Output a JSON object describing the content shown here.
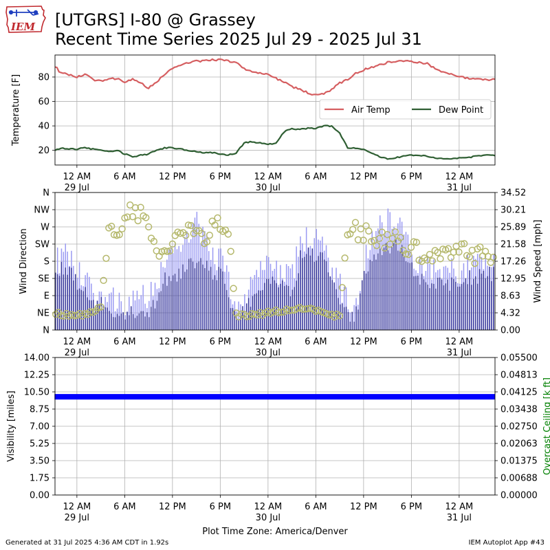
{
  "header": {
    "logo_text": "IEM",
    "title_line1": "[UTGRS] I-80 @ Grassey",
    "title_line2": "Recent Time Series 2025 Jul 29 - 2025 Jul 31"
  },
  "footer": {
    "generated": "Generated at 31 Jul 2025 4:36 AM CDT in 1.92s",
    "app": "IEM Autoplot App #43"
  },
  "colors": {
    "air_temp": "#d55e60",
    "dew_point": "#2e5e32",
    "gust_bar": "#9a9af2",
    "speed_bar": "#373799",
    "direction_marker": "#b5b86c",
    "visibility": "#0000ff",
    "ceiling_axis": "#008000"
  },
  "time_axis": {
    "start_hours": -2.75,
    "end_hours": 52.5,
    "tick_hours": [
      0,
      6,
      12,
      18,
      24,
      30,
      36,
      42,
      48
    ],
    "tick_labels": [
      "12 AM",
      "6 AM",
      "12 PM",
      "6 PM",
      "12 AM",
      "6 AM",
      "12 PM",
      "6 PM",
      "12 AM"
    ],
    "date_labels": [
      {
        "hour": 0,
        "label": "29 Jul"
      },
      {
        "hour": 24,
        "label": "30 Jul"
      },
      {
        "hour": 48,
        "label": "31 Jul"
      }
    ],
    "xlabel": "Plot Time Zone: America/Denver"
  },
  "chart_data": [
    {
      "type": "line",
      "name": "temperature",
      "ylabel": "Temperature [F]",
      "ylim": [
        8,
        98
      ],
      "yticks": [
        20,
        40,
        60,
        80
      ],
      "grid": true,
      "legend": "right",
      "legend_labels": [
        "Air Temp",
        "Dew Point"
      ],
      "x_hours": [
        -2.75,
        -2,
        -1,
        0,
        1,
        2,
        3,
        4,
        5,
        6,
        7,
        8,
        9,
        10,
        11,
        12,
        13,
        14,
        15,
        16,
        17,
        18,
        19,
        20,
        21,
        22,
        23,
        24,
        25,
        26,
        27,
        28,
        29,
        30,
        31,
        32,
        33,
        34,
        35,
        36,
        37,
        38,
        39,
        40,
        41,
        42,
        43,
        44,
        45,
        46,
        47,
        48,
        49,
        50,
        51,
        52,
        52.5
      ],
      "series": [
        {
          "name": "Air Temp",
          "values": [
            89,
            83,
            82,
            80,
            82,
            78,
            77,
            78,
            79,
            76,
            78,
            75,
            71,
            76,
            82,
            87,
            90,
            92,
            93,
            93,
            94,
            94,
            93,
            92,
            87,
            84,
            83,
            82,
            79,
            76,
            72,
            70,
            67,
            65,
            66,
            70,
            75,
            78,
            83,
            86,
            88,
            90,
            92,
            93,
            93,
            93,
            92,
            91,
            87,
            84,
            82,
            81,
            79,
            78,
            78,
            78,
            78
          ]
        },
        {
          "name": "Dew Point",
          "values": [
            20,
            22,
            21,
            21,
            22,
            21,
            20,
            19,
            20,
            17,
            15,
            16,
            17,
            20,
            22,
            22,
            21,
            20,
            19,
            18,
            18,
            17,
            16,
            18,
            26,
            27,
            26,
            25,
            26,
            35,
            38,
            37,
            38,
            38,
            40,
            40,
            34,
            22,
            22,
            21,
            18,
            15,
            13,
            14,
            15,
            16,
            16,
            15,
            14,
            13,
            13,
            14,
            14,
            15,
            16,
            16,
            16
          ]
        }
      ]
    },
    {
      "type": "bar",
      "name": "wind",
      "ylabel": "Wind Direction",
      "ylabel_right": "Wind Speed [mph]",
      "direction_ticks": [
        {
          "deg": 0,
          "label": "N"
        },
        {
          "deg": 45,
          "label": "NE"
        },
        {
          "deg": 90,
          "label": "E"
        },
        {
          "deg": 135,
          "label": "SE"
        },
        {
          "deg": 180,
          "label": "S"
        },
        {
          "deg": 225,
          "label": "SW"
        },
        {
          "deg": 270,
          "label": "W"
        },
        {
          "deg": 315,
          "label": "NW"
        },
        {
          "deg": 360,
          "label": "N"
        }
      ],
      "speed_ticks": [
        "0.00",
        "4.32",
        "8.63",
        "12.95",
        "17.26",
        "21.58",
        "25.89",
        "30.21",
        "34.52"
      ],
      "speed_range": [
        0,
        34.52
      ],
      "grid": true,
      "anchor_hours": [
        -2.75,
        -1,
        0,
        1,
        2,
        3,
        4,
        5,
        6,
        7,
        8,
        9,
        10,
        11,
        12,
        13,
        14,
        15,
        16,
        17,
        18,
        19,
        20,
        21,
        22,
        23,
        24,
        25,
        26,
        27,
        28,
        29,
        30,
        31,
        32,
        33,
        34,
        35,
        36,
        37,
        38,
        39,
        40,
        41,
        42,
        43,
        44,
        45,
        46,
        47,
        48,
        49,
        50,
        51,
        52,
        52.5
      ],
      "speed": [
        15,
        16,
        12,
        9,
        6,
        7,
        5,
        5,
        4,
        4,
        4,
        5,
        7,
        13,
        13,
        14,
        16,
        17,
        16,
        14,
        14,
        9,
        3,
        5,
        8,
        11,
        13,
        12,
        11,
        10,
        18,
        19,
        19,
        17,
        11,
        8,
        4,
        4,
        13,
        18,
        20,
        20,
        21,
        20,
        15,
        13,
        12,
        12,
        11,
        12,
        12,
        13,
        13,
        14,
        14,
        14
      ],
      "gust": [
        17,
        19,
        15,
        12,
        8,
        9,
        7,
        8,
        6,
        7,
        8,
        9,
        12,
        17,
        20,
        22,
        25,
        27,
        22,
        18,
        18,
        12,
        5,
        8,
        12,
        15,
        17,
        15,
        14,
        14,
        22,
        23,
        22,
        20,
        15,
        11,
        7,
        6,
        17,
        23,
        27,
        28,
        28,
        25,
        19,
        17,
        16,
        16,
        15,
        15,
        15,
        16,
        16,
        17,
        17,
        17
      ],
      "direction": [
        42,
        40,
        38,
        40,
        45,
        60,
        250,
        260,
        290,
        310,
        300,
        280,
        200,
        210,
        240,
        250,
        260,
        245,
        250,
        270,
        270,
        250,
        40,
        38,
        40,
        42,
        45,
        48,
        50,
        52,
        55,
        55,
        50,
        45,
        40,
        36,
        270,
        265,
        255,
        250,
        240,
        240,
        235,
        225,
        215,
        200,
        195,
        190,
        190,
        200,
        205,
        200,
        195,
        195,
        190,
        185
      ]
    },
    {
      "type": "scatter",
      "name": "visibility",
      "ylabel": "Visibility [miles]",
      "ylabel_right": "Overcast Ceiling [k ft]",
      "ylim": [
        0,
        14
      ],
      "yticks": [
        "0.00",
        "1.75",
        "3.50",
        "5.25",
        "7.00",
        "8.75",
        "10.50",
        "12.25",
        "14.00"
      ],
      "right_yticks": [
        "0.00000",
        "0.00688",
        "0.01375",
        "0.02063",
        "0.02750",
        "0.03438",
        "0.04125",
        "0.04813",
        "0.05500"
      ],
      "grid": true,
      "constant_value": 10
    }
  ]
}
